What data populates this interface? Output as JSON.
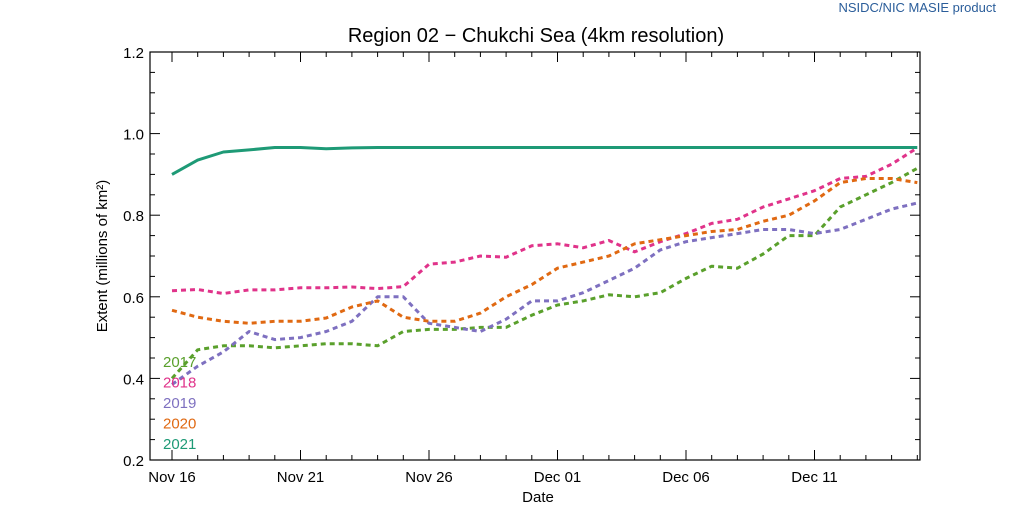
{
  "header": {
    "credit": "NSIDC/NIC MASIE product"
  },
  "chart_data": {
    "type": "line",
    "title": "Region 02 − Chukchi Sea (4km resolution)",
    "xlabel": "Date",
    "ylabel": "Extent (millions of km²)",
    "ylim": [
      0.2,
      1.2
    ],
    "yticks": [
      0.2,
      0.4,
      0.6,
      0.8,
      1.0,
      1.2
    ],
    "ytick_labels": [
      "0.2",
      "0.4",
      "0.6",
      "0.8",
      "1.0",
      "1.2"
    ],
    "x_dates": [
      "Nov 16",
      "Nov 17",
      "Nov 18",
      "Nov 19",
      "Nov 20",
      "Nov 21",
      "Nov 22",
      "Nov 23",
      "Nov 24",
      "Nov 25",
      "Nov 26",
      "Nov 27",
      "Nov 28",
      "Nov 29",
      "Nov 30",
      "Dec 01",
      "Dec 02",
      "Dec 03",
      "Dec 04",
      "Dec 05",
      "Dec 06",
      "Dec 07",
      "Dec 08",
      "Dec 09",
      "Dec 10",
      "Dec 11",
      "Dec 12",
      "Dec 13",
      "Dec 14",
      "Dec 15"
    ],
    "xtick_labels": [
      "Nov 16",
      "Nov 21",
      "Nov 26",
      "Dec 01",
      "Dec 06",
      "Dec 11"
    ],
    "grid": false,
    "legend_position": "bottom-left",
    "series": [
      {
        "name": "2017",
        "color": "#5aa02c",
        "dash": true,
        "values": [
          0.4,
          0.47,
          0.48,
          0.48,
          0.475,
          0.48,
          0.485,
          0.485,
          0.48,
          0.515,
          0.52,
          0.52,
          0.525,
          0.525,
          0.555,
          0.58,
          0.59,
          0.605,
          0.6,
          0.61,
          0.645,
          0.675,
          0.67,
          0.705,
          0.75,
          0.75,
          0.82,
          0.85,
          0.88,
          0.915
        ]
      },
      {
        "name": "2018",
        "color": "#e0338a",
        "dash": true,
        "values": [
          0.615,
          0.618,
          0.608,
          0.617,
          0.617,
          0.622,
          0.622,
          0.624,
          0.62,
          0.625,
          0.68,
          0.685,
          0.7,
          0.697,
          0.725,
          0.73,
          0.72,
          0.738,
          0.71,
          0.735,
          0.755,
          0.78,
          0.79,
          0.82,
          0.84,
          0.86,
          0.89,
          0.895,
          0.925,
          0.965
        ]
      },
      {
        "name": "2019",
        "color": "#7e70c0",
        "dash": true,
        "values": [
          0.385,
          0.43,
          0.465,
          0.515,
          0.495,
          0.5,
          0.515,
          0.54,
          0.6,
          0.6,
          0.535,
          0.525,
          0.515,
          0.545,
          0.59,
          0.59,
          0.61,
          0.64,
          0.67,
          0.715,
          0.735,
          0.745,
          0.755,
          0.765,
          0.765,
          0.755,
          0.765,
          0.79,
          0.815,
          0.83
        ]
      },
      {
        "name": "2020",
        "color": "#e06912",
        "dash": true,
        "values": [
          0.567,
          0.55,
          0.54,
          0.535,
          0.54,
          0.54,
          0.548,
          0.575,
          0.59,
          0.55,
          0.54,
          0.54,
          0.56,
          0.6,
          0.63,
          0.67,
          0.685,
          0.7,
          0.73,
          0.74,
          0.75,
          0.76,
          0.765,
          0.785,
          0.8,
          0.835,
          0.88,
          0.89,
          0.89,
          0.88
        ]
      },
      {
        "name": "2021",
        "color": "#1e9a76",
        "dash": false,
        "values": [
          0.9,
          0.935,
          0.955,
          0.96,
          0.966,
          0.966,
          0.963,
          0.965,
          0.966,
          0.966,
          0.966,
          0.966,
          0.966,
          0.966,
          0.966,
          0.966,
          0.966,
          0.966,
          0.966,
          0.966,
          0.966,
          0.966,
          0.966,
          0.966,
          0.966,
          0.966,
          0.966,
          0.966,
          0.966,
          0.966
        ]
      }
    ]
  }
}
